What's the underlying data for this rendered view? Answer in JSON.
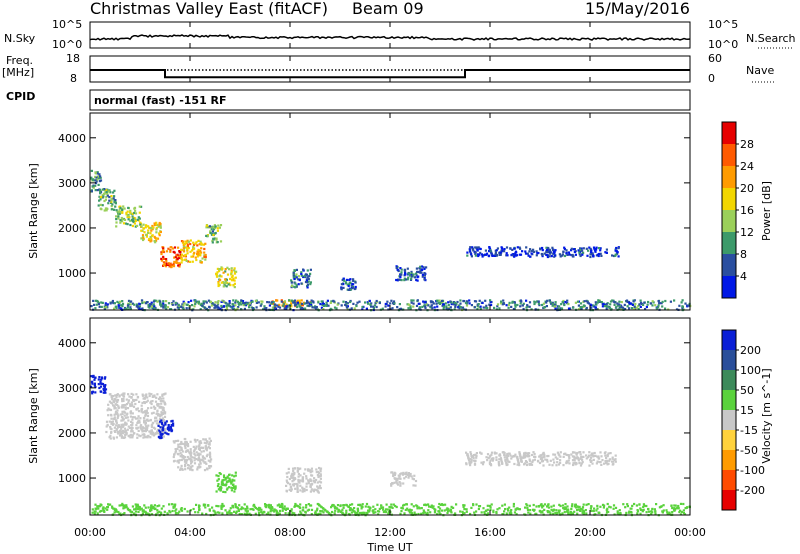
{
  "header": {
    "station": "Christmas Valley East (fitACF)",
    "beam": "Beam 09",
    "date": "15/May/2016"
  },
  "summary": {
    "nsky_label": "N.Sky",
    "nsearch_label": "N.Search",
    "nsky_ticks": [
      "10^5",
      "10^0"
    ],
    "nsearch_ticks": [
      "10^5",
      "10^0"
    ],
    "freq_label": "Freq.",
    "freq_unit": "[MHz]",
    "freq_ticks": [
      "18",
      "8"
    ],
    "nave_label": "Nave",
    "nave_ticks": [
      "60",
      "0"
    ],
    "cpid_label": "CPID",
    "cpid_value": "normal (fast) -151 RF"
  },
  "axes": {
    "x_ticks": [
      "00:00",
      "04:00",
      "08:00",
      "12:00",
      "16:00",
      "20:00",
      "00:00"
    ],
    "x_label": "Time UT",
    "y_ticks": [
      "1000",
      "2000",
      "3000",
      "4000"
    ],
    "y_label": "Slant Range [km]"
  },
  "power_colorbar": {
    "label": "Power [dB]",
    "ticks": [
      "28",
      "24",
      "20",
      "16",
      "12",
      "8",
      "4"
    ],
    "colors": [
      "#e60000",
      "#ff5a00",
      "#ff9b00",
      "#f2d600",
      "#9bd05a",
      "#3c9a6a",
      "#2a4fa0",
      "#0018e6"
    ]
  },
  "velocity_colorbar": {
    "label": "Velocity [m s^-1]",
    "ticks": [
      "200",
      "100",
      "50",
      "15",
      "-15",
      "-50",
      "-100",
      "-200"
    ],
    "colors": [
      "#0a1fd6",
      "#2a4f9a",
      "#3c8a5a",
      "#5ad23c",
      "#c8c8c8",
      "#ffd23c",
      "#ff9b00",
      "#ff4b00",
      "#e60000"
    ]
  },
  "chart_data": [
    {
      "type": "heatmap",
      "name": "Power [dB]",
      "x_unit": "UT hour",
      "y_unit": "km",
      "xlim": [
        0,
        24
      ],
      "ylim": [
        180,
        4550
      ],
      "regions": [
        {
          "x": [
            0.0,
            0.4
          ],
          "y": [
            2800,
            3300
          ],
          "value": 12
        },
        {
          "x": [
            0.3,
            1.0
          ],
          "y": [
            2400,
            2900
          ],
          "value": 14
        },
        {
          "x": [
            1.0,
            2.0
          ],
          "y": [
            2050,
            2500
          ],
          "value": 16
        },
        {
          "x": [
            2.0,
            2.8
          ],
          "y": [
            1700,
            2150
          ],
          "value": 20
        },
        {
          "x": [
            2.8,
            3.6
          ],
          "y": [
            1150,
            1600
          ],
          "value": 28
        },
        {
          "x": [
            3.6,
            4.6
          ],
          "y": [
            1250,
            1750
          ],
          "value": 22
        },
        {
          "x": [
            4.6,
            5.2
          ],
          "y": [
            1700,
            2100
          ],
          "value": 14
        },
        {
          "x": [
            5.0,
            5.8
          ],
          "y": [
            700,
            1150
          ],
          "value": 18
        },
        {
          "x": [
            7.2,
            8.8
          ],
          "y": [
            280,
            420
          ],
          "value": 24
        },
        {
          "x": [
            8.0,
            8.8
          ],
          "y": [
            700,
            1100
          ],
          "value": 10
        },
        {
          "x": [
            10.0,
            10.6
          ],
          "y": [
            650,
            900
          ],
          "value": 8
        },
        {
          "x": [
            12.2,
            13.4
          ],
          "y": [
            850,
            1200
          ],
          "value": 8
        },
        {
          "x": [
            15.0,
            21.2
          ],
          "y": [
            1380,
            1600
          ],
          "value": 6
        },
        {
          "x": [
            0.0,
            24.0
          ],
          "y": [
            200,
            420
          ],
          "value": 10
        }
      ]
    },
    {
      "type": "heatmap",
      "name": "Velocity [m s^-1]",
      "x_unit": "UT hour",
      "y_unit": "km",
      "xlim": [
        0,
        24
      ],
      "ylim": [
        180,
        4550
      ],
      "regions": [
        {
          "x": [
            0.0,
            0.6
          ],
          "y": [
            2900,
            3300
          ],
          "value": 220
        },
        {
          "x": [
            0.6,
            3.0
          ],
          "y": [
            1900,
            2900
          ],
          "value": 0
        },
        {
          "x": [
            2.7,
            3.3
          ],
          "y": [
            1900,
            2300
          ],
          "value": 220
        },
        {
          "x": [
            3.3,
            4.8
          ],
          "y": [
            1200,
            1900
          ],
          "value": 0
        },
        {
          "x": [
            5.0,
            5.8
          ],
          "y": [
            700,
            1150
          ],
          "value": 40
        },
        {
          "x": [
            7.8,
            9.2
          ],
          "y": [
            700,
            1250
          ],
          "value": 0
        },
        {
          "x": [
            12.0,
            13.0
          ],
          "y": [
            850,
            1150
          ],
          "value": 0
        },
        {
          "x": [
            15.0,
            21.0
          ],
          "y": [
            1300,
            1600
          ],
          "value": 0
        },
        {
          "x": [
            0.0,
            24.0
          ],
          "y": [
            200,
            450
          ],
          "value": 30
        }
      ]
    },
    {
      "type": "line",
      "name": "Freq.",
      "x": [
        0,
        3,
        3,
        15,
        15,
        24
      ],
      "values": [
        12.6,
        12.6,
        9.8,
        9.8,
        12.6,
        12.6
      ],
      "ylim": [
        8,
        18
      ]
    }
  ]
}
